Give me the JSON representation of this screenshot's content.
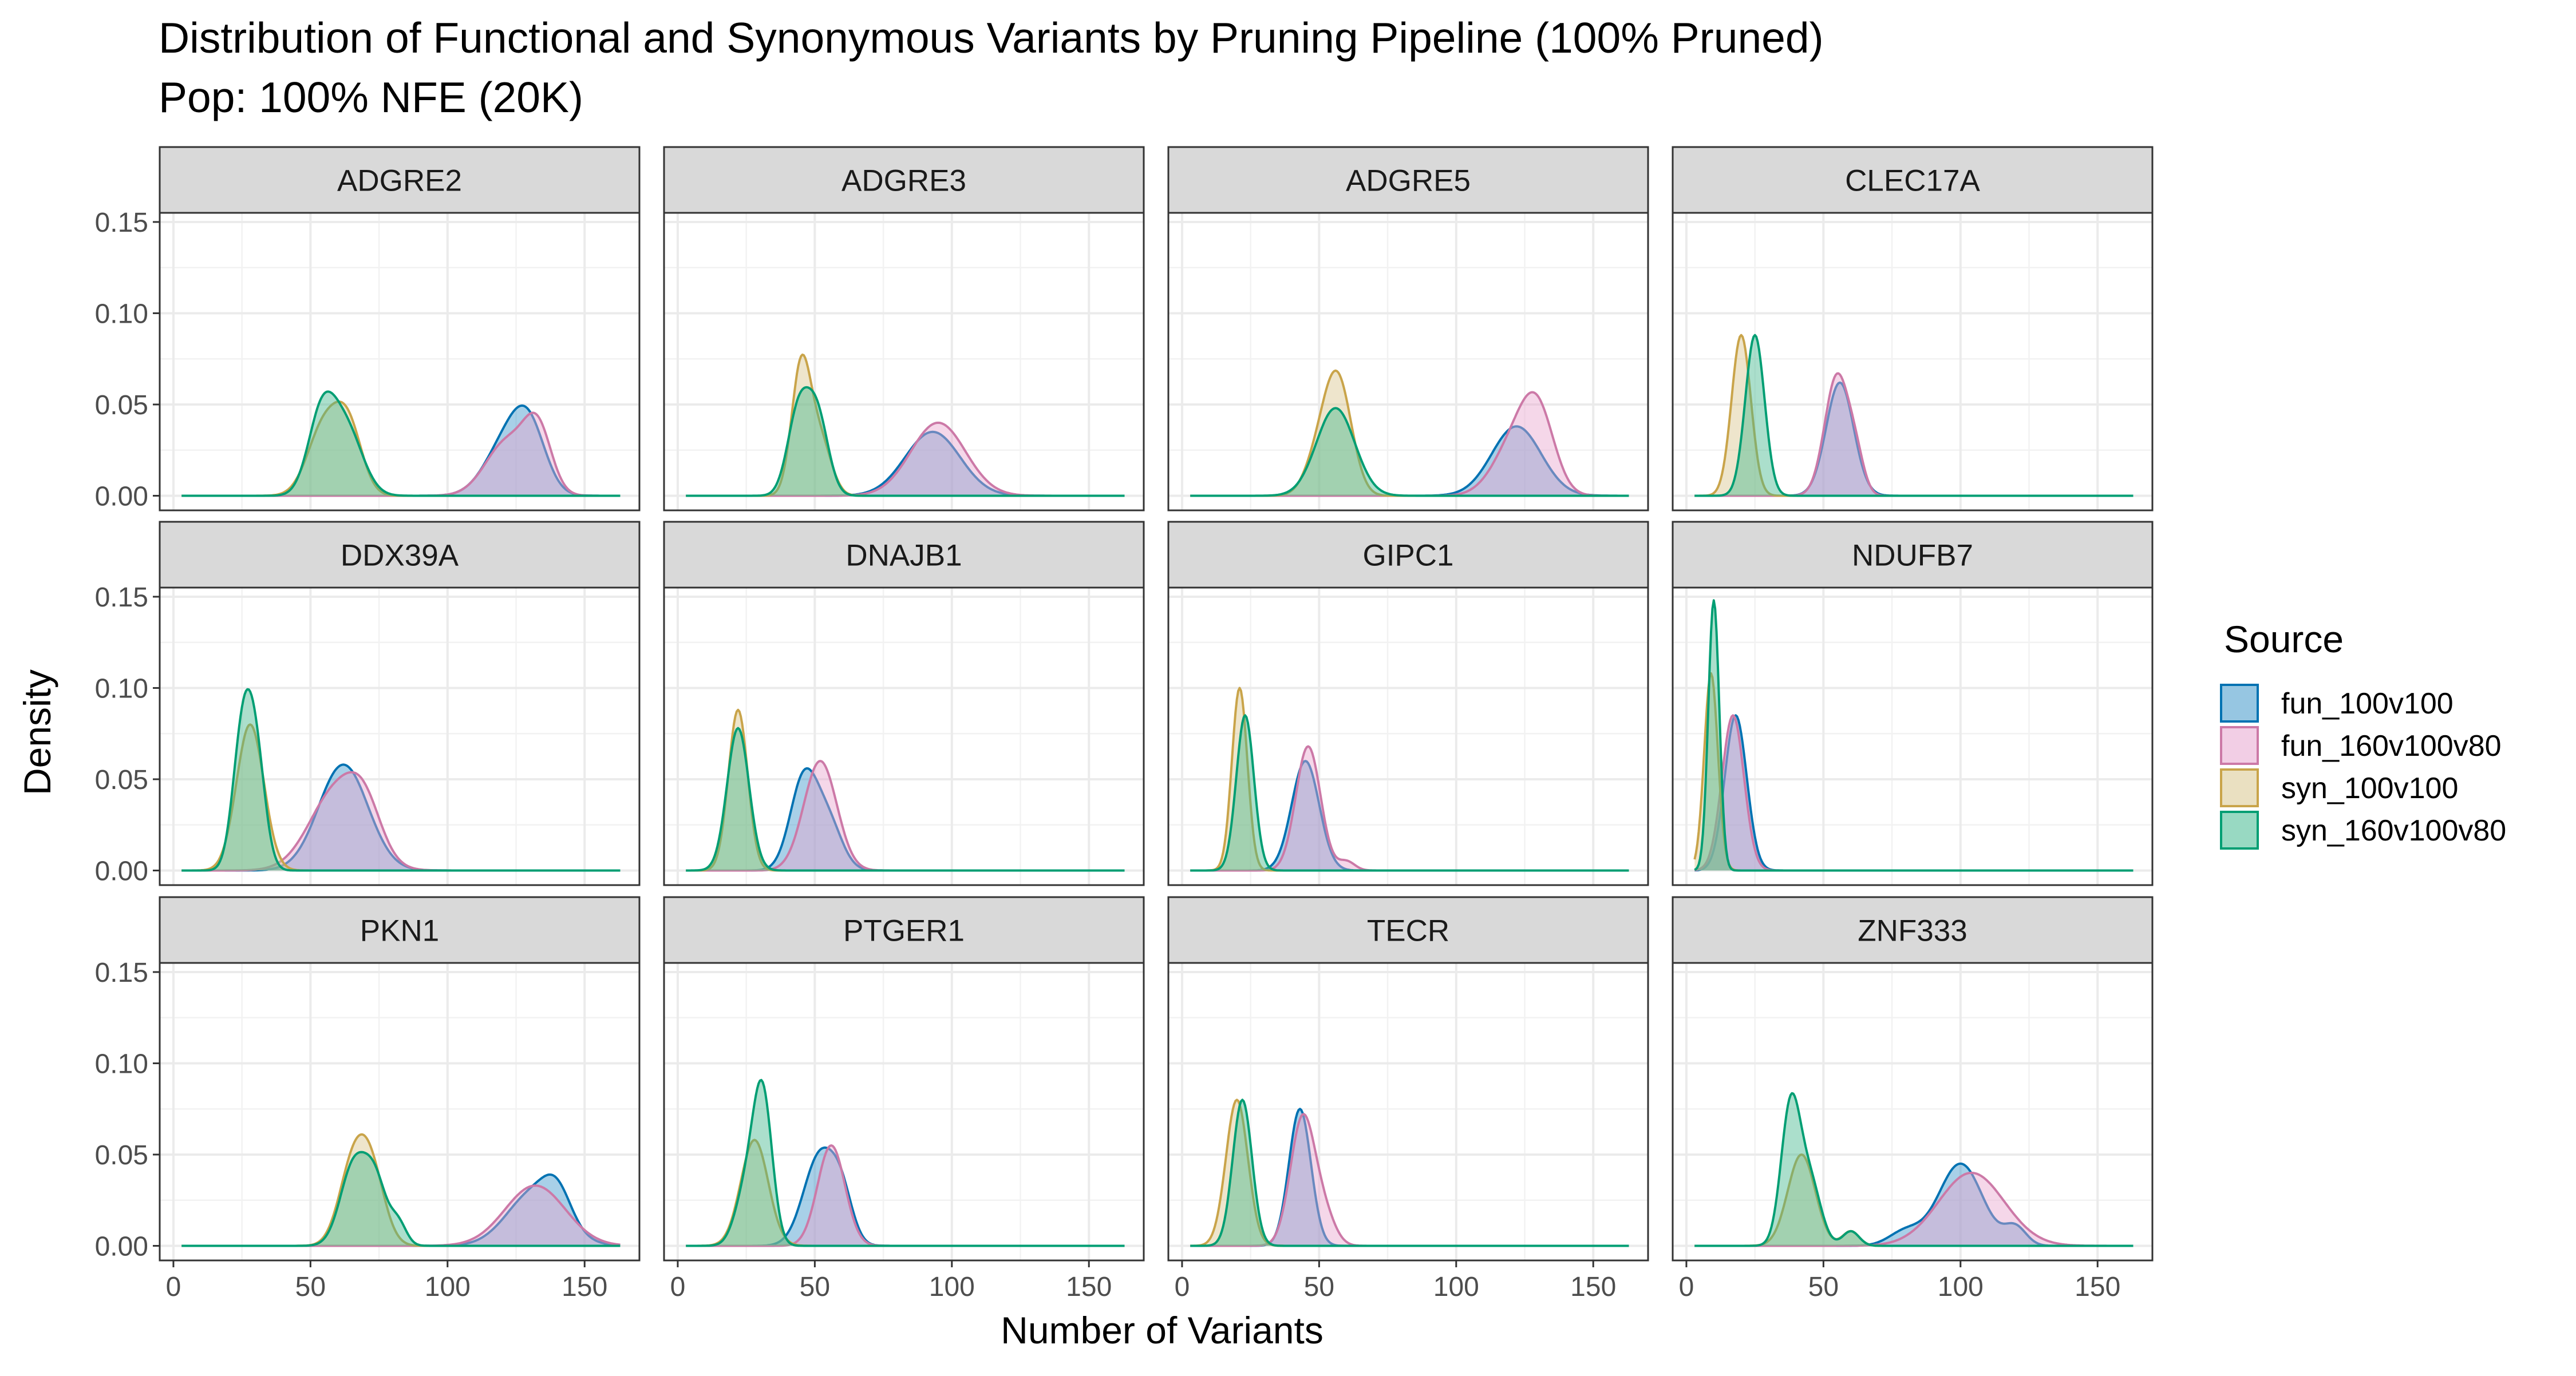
{
  "chart_data": {
    "type": "area",
    "title": "Distribution of Functional and Synonymous Variants by Pruning Pipeline (100% Pruned)",
    "subtitle": "Pop: 100% NFE (20K)",
    "xlabel": "Number of Variants",
    "ylabel": "Density",
    "xlim": [
      -5,
      170
    ],
    "ylim": [
      -0.008,
      0.155
    ],
    "x_ticks": [
      0,
      50,
      100,
      150
    ],
    "x_tick_labels": [
      "0",
      "50",
      "100",
      "150"
    ],
    "y_ticks": [
      0,
      0.05,
      0.1,
      0.15
    ],
    "y_tick_labels": [
      "0.00",
      "0.05",
      "0.10",
      "0.15"
    ],
    "grid": true,
    "facet_rows": 3,
    "facet_cols": 4,
    "legend": {
      "title": "Source",
      "position": "right",
      "items": [
        {
          "name": "fun_100v100",
          "line": "#0072B2",
          "fill": "#3F97CB"
        },
        {
          "name": "fun_160v100v80",
          "line": "#CC79A7",
          "fill": "#E8A6CF"
        },
        {
          "name": "syn_100v100",
          "line": "#C9A44A",
          "fill": "#D9C68E"
        },
        {
          "name": "syn_160v100v80",
          "line": "#009E73",
          "fill": "#44B98F"
        }
      ]
    },
    "density_range": [
      3,
      163
    ],
    "facets": [
      {
        "gene": "ADGRE2",
        "series": [
          {
            "name": "fun_100v100",
            "peaks": [
              [
                122,
                0.03,
                8
              ],
              [
                130,
                0.028,
                6
              ]
            ]
          },
          {
            "name": "fun_160v100v80",
            "peaks": [
              [
                122,
                0.03,
                8
              ],
              [
                133,
                0.032,
                5
              ]
            ]
          },
          {
            "name": "syn_100v100",
            "peaks": [
              [
                55,
                0.038,
                6
              ],
              [
                64,
                0.034,
                5
              ]
            ]
          },
          {
            "name": "syn_160v100v80",
            "peaks": [
              [
                54,
                0.042,
                5
              ],
              [
                63,
                0.036,
                6
              ]
            ]
          }
        ]
      },
      {
        "gene": "ADGRE3",
        "series": [
          {
            "name": "fun_100v100",
            "peaks": [
              [
                93,
                0.035,
                10
              ]
            ]
          },
          {
            "name": "fun_160v100v80",
            "peaks": [
              [
                95,
                0.04,
                10
              ]
            ]
          },
          {
            "name": "syn_100v100",
            "peaks": [
              [
                45,
                0.07,
                3.5
              ],
              [
                52,
                0.03,
                4
              ]
            ]
          },
          {
            "name": "syn_160v100v80",
            "peaks": [
              [
                44,
                0.045,
                4
              ],
              [
                51,
                0.042,
                4
              ]
            ]
          }
        ]
      },
      {
        "gene": "ADGRE5",
        "series": [
          {
            "name": "fun_100v100",
            "peaks": [
              [
                122,
                0.038,
                9
              ]
            ]
          },
          {
            "name": "fun_160v100v80",
            "peaks": [
              [
                122,
                0.03,
                8
              ],
              [
                130,
                0.036,
                6
              ]
            ]
          },
          {
            "name": "syn_100v100",
            "peaks": [
              [
                57,
                0.06,
                5
              ],
              [
                50,
                0.02,
                5
              ]
            ]
          },
          {
            "name": "syn_160v100v80",
            "peaks": [
              [
                56,
                0.048,
                7
              ]
            ]
          }
        ]
      },
      {
        "gene": "CLEC17A",
        "series": [
          {
            "name": "fun_100v100",
            "peaks": [
              [
                56,
                0.062,
                5
              ]
            ]
          },
          {
            "name": "fun_160v100v80",
            "peaks": [
              [
                55,
                0.066,
                4.5
              ],
              [
                62,
                0.015,
                3
              ]
            ]
          },
          {
            "name": "syn_100v100",
            "peaks": [
              [
                20,
                0.088,
                3.5
              ]
            ]
          },
          {
            "name": "syn_160v100v80",
            "peaks": [
              [
                25,
                0.088,
                3.5
              ]
            ]
          }
        ]
      },
      {
        "gene": "DDX39A",
        "series": [
          {
            "name": "fun_100v100",
            "peaks": [
              [
                62,
                0.058,
                9
              ]
            ]
          },
          {
            "name": "fun_160v100v80",
            "peaks": [
              [
                60,
                0.045,
                10
              ],
              [
                70,
                0.02,
                6
              ]
            ]
          },
          {
            "name": "syn_100v100",
            "peaks": [
              [
                28,
                0.08,
                5
              ]
            ]
          },
          {
            "name": "syn_160v100v80",
            "peaks": [
              [
                25,
                0.068,
                3.5
              ],
              [
                30,
                0.06,
                3.5
              ]
            ]
          }
        ]
      },
      {
        "gene": "DNAJB1",
        "series": [
          {
            "name": "fun_100v100",
            "peaks": [
              [
                46,
                0.05,
                5
              ],
              [
                55,
                0.025,
                5
              ]
            ]
          },
          {
            "name": "fun_160v100v80",
            "peaks": [
              [
                52,
                0.06,
                6
              ]
            ]
          },
          {
            "name": "syn_100v100",
            "peaks": [
              [
                22,
                0.088,
                3.5
              ]
            ]
          },
          {
            "name": "syn_160v100v80",
            "peaks": [
              [
                22,
                0.078,
                4
              ]
            ]
          }
        ]
      },
      {
        "gene": "GIPC1",
        "series": [
          {
            "name": "fun_100v100",
            "peaks": [
              [
                45,
                0.06,
                5
              ]
            ]
          },
          {
            "name": "fun_160v100v80",
            "peaks": [
              [
                46,
                0.068,
                4.5
              ],
              [
                60,
                0.005,
                3
              ]
            ]
          },
          {
            "name": "syn_100v100",
            "peaks": [
              [
                21,
                0.1,
                2.8
              ]
            ]
          },
          {
            "name": "syn_160v100v80",
            "peaks": [
              [
                23,
                0.085,
                3.2
              ]
            ]
          }
        ]
      },
      {
        "gene": "NDUFB7",
        "series": [
          {
            "name": "fun_100v100",
            "peaks": [
              [
                18,
                0.085,
                4
              ]
            ]
          },
          {
            "name": "fun_160v100v80",
            "peaks": [
              [
                17,
                0.085,
                4
              ]
            ]
          },
          {
            "name": "syn_100v100",
            "peaks": [
              [
                9,
                0.108,
                2.5
              ]
            ]
          },
          {
            "name": "syn_160v100v80",
            "peaks": [
              [
                10,
                0.148,
                2
              ]
            ]
          }
        ]
      },
      {
        "gene": "PKN1",
        "series": [
          {
            "name": "fun_100v100",
            "peaks": [
              [
                132,
                0.03,
                10
              ],
              [
                140,
                0.015,
                5
              ]
            ]
          },
          {
            "name": "fun_160v100v80",
            "peaks": [
              [
                132,
                0.033,
                11
              ]
            ]
          },
          {
            "name": "syn_100v100",
            "peaks": [
              [
                65,
                0.038,
                5
              ],
              [
                72,
                0.04,
                5
              ]
            ]
          },
          {
            "name": "syn_160v100v80",
            "peaks": [
              [
                66,
                0.045,
                5
              ],
              [
                74,
                0.03,
                4
              ],
              [
                82,
                0.012,
                3
              ]
            ]
          }
        ]
      },
      {
        "gene": "PTGER1",
        "series": [
          {
            "name": "fun_100v100",
            "peaks": [
              [
                52,
                0.05,
                6
              ],
              [
                60,
                0.02,
                4
              ]
            ]
          },
          {
            "name": "fun_160v100v80",
            "peaks": [
              [
                56,
                0.055,
                5
              ]
            ]
          },
          {
            "name": "syn_100v100",
            "peaks": [
              [
                28,
                0.058,
                5
              ]
            ]
          },
          {
            "name": "syn_160v100v80",
            "peaks": [
              [
                31,
                0.08,
                3.5
              ],
              [
                25,
                0.03,
                4
              ]
            ]
          }
        ]
      },
      {
        "gene": "TECR",
        "series": [
          {
            "name": "fun_100v100",
            "peaks": [
              [
                43,
                0.075,
                4
              ]
            ]
          },
          {
            "name": "fun_160v100v80",
            "peaks": [
              [
                44,
                0.07,
                4.5
              ],
              [
                52,
                0.015,
                4
              ]
            ]
          },
          {
            "name": "syn_100v100",
            "peaks": [
              [
                20,
                0.08,
                4
              ]
            ]
          },
          {
            "name": "syn_160v100v80",
            "peaks": [
              [
                22,
                0.08,
                3.5
              ]
            ]
          }
        ]
      },
      {
        "gene": "ZNF333",
        "series": [
          {
            "name": "fun_100v100",
            "peaks": [
              [
                100,
                0.045,
                8
              ],
              [
                80,
                0.008,
                6
              ],
              [
                120,
                0.01,
                4
              ]
            ]
          },
          {
            "name": "fun_160v100v80",
            "peaks": [
              [
                104,
                0.04,
                12
              ]
            ]
          },
          {
            "name": "syn_100v100",
            "peaks": [
              [
                42,
                0.05,
                5
              ],
              [
                60,
                0.008,
                3
              ]
            ]
          },
          {
            "name": "syn_160v100v80",
            "peaks": [
              [
                38,
                0.075,
                3.5
              ],
              [
                45,
                0.035,
                4
              ],
              [
                60,
                0.008,
                3
              ]
            ]
          }
        ]
      }
    ]
  }
}
